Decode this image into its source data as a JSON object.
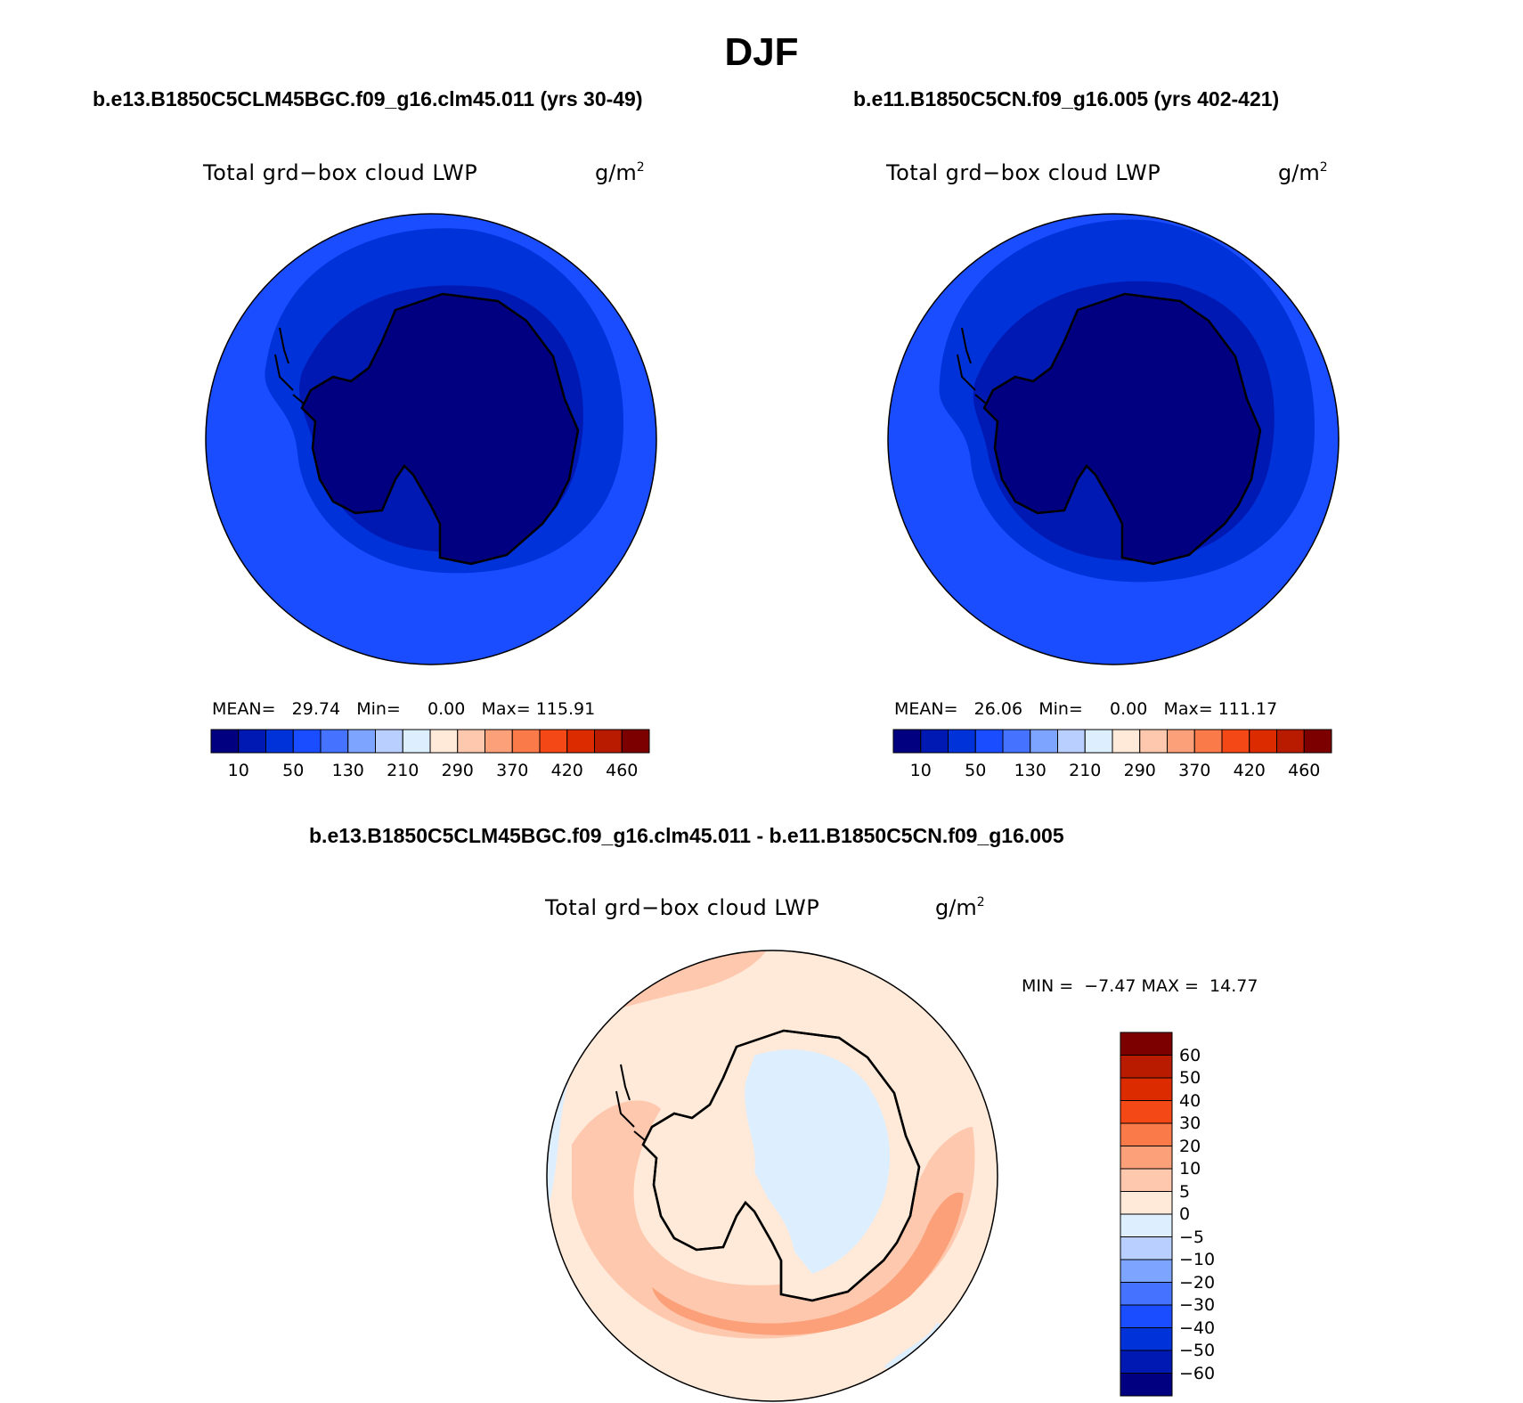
{
  "title": "DJF",
  "variable_label": "Total grd−box cloud LWP",
  "units_base": "g/m",
  "units_exp": "2",
  "colors": {
    "levels_abs": [
      "#000080",
      "#0019b3",
      "#0032d9",
      "#1a4dff",
      "#4573ff",
      "#7da4ff",
      "#b8cfff",
      "#ddeeff",
      "#ffe9d8",
      "#fdc8ae",
      "#fba079",
      "#fa7a4a",
      "#f54817",
      "#dd2b00",
      "#b81b00",
      "#7d0000"
    ],
    "levels_diff": [
      "#000080",
      "#0019b3",
      "#0032d9",
      "#1a4dff",
      "#4573ff",
      "#7da4ff",
      "#b8cfff",
      "#ddeeff",
      "#ffe9d8",
      "#fdc8ae",
      "#fba079",
      "#fa7a4a",
      "#f54817",
      "#dd2b00",
      "#b81b00",
      "#7d0000"
    ]
  },
  "panels": [
    {
      "case": "b.e13.B1850C5CLM45BGC.f09_g16.clm45.011 (yrs 30-49)",
      "mean_label": "MEAN=",
      "mean": "29.74",
      "min_label": "Min=",
      "min": "0.00",
      "max_label": "Max=",
      "max": "115.91"
    },
    {
      "case": "b.e11.B1850C5CN.f09_g16.005 (yrs 402-421)",
      "mean_label": "MEAN=",
      "mean": "26.06",
      "min_label": "Min=",
      "min": "0.00",
      "max_label": "Max=",
      "max": "111.17"
    }
  ],
  "abs_colorbar_ticks": [
    "10",
    "50",
    "130",
    "210",
    "290",
    "370",
    "420",
    "460"
  ],
  "difference": {
    "title": "b.e13.B1850C5CLM45BGC.f09_g16.clm45.011 - b.e11.B1850C5CN.f09_g16.005",
    "min_label": "MIN =",
    "min": "−7.47",
    "max_label": "MAX =",
    "max": "14.77",
    "colorbar_ticks": [
      "60",
      "50",
      "40",
      "30",
      "20",
      "10",
      "5",
      "0",
      "−5",
      "−10",
      "−20",
      "−30",
      "−40",
      "−50",
      "−60"
    ]
  }
}
